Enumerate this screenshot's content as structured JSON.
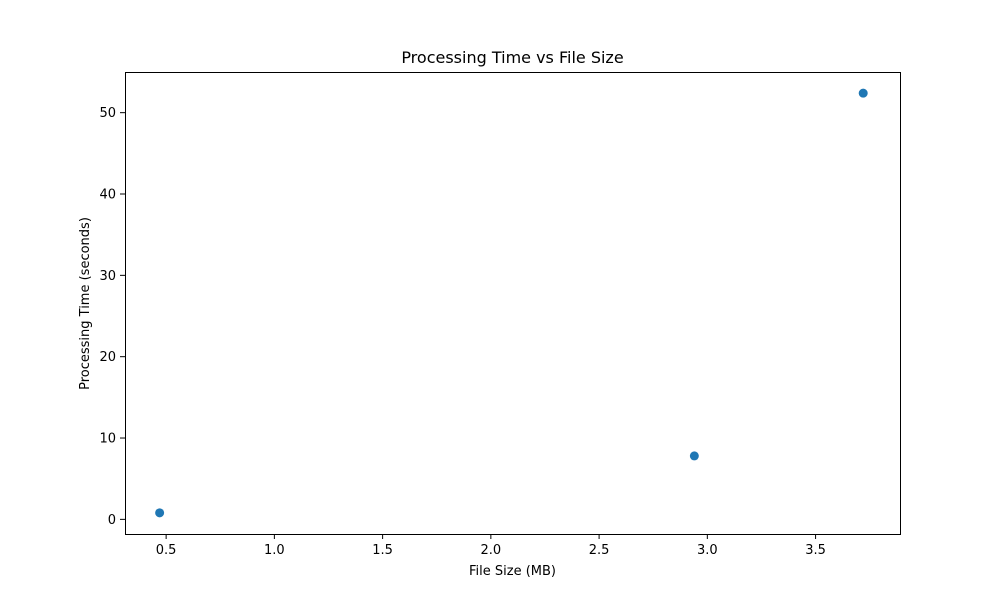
{
  "chart_data": {
    "type": "scatter",
    "title": "Processing Time vs File Size",
    "xlabel": "File Size (MB)",
    "ylabel": "Processing Time (seconds)",
    "xlim": [
      0.31,
      3.89
    ],
    "ylim": [
      -1.8,
      55.0
    ],
    "xticks": [
      0.5,
      1.0,
      1.5,
      2.0,
      2.5,
      3.0,
      3.5
    ],
    "xtick_labels": [
      "0.5",
      "1.0",
      "1.5",
      "2.0",
      "2.5",
      "3.0",
      "3.5"
    ],
    "yticks": [
      0,
      10,
      20,
      30,
      40,
      50
    ],
    "ytick_labels": [
      "0",
      "10",
      "20",
      "30",
      "40",
      "50"
    ],
    "grid": false,
    "series": [
      {
        "color": "#1f77b4",
        "points": [
          {
            "x": 0.47,
            "y": 0.8
          },
          {
            "x": 2.94,
            "y": 7.8
          },
          {
            "x": 3.72,
            "y": 52.4
          }
        ]
      }
    ]
  }
}
